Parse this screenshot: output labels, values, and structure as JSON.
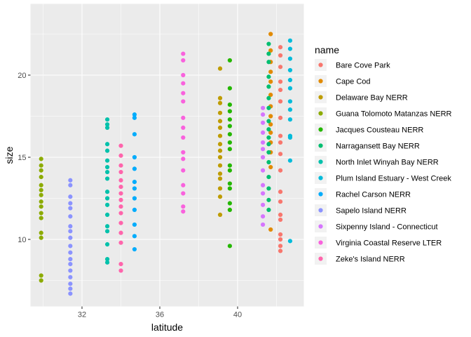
{
  "chart_data": {
    "type": "scatter",
    "title": "",
    "xlabel": "latitude",
    "ylabel": "size",
    "xlim": [
      29.6,
      43.0
    ],
    "ylim": [
      6.0,
      24.0
    ],
    "x_ticks": [
      32,
      36,
      40
    ],
    "y_ticks": [
      10,
      15,
      20
    ],
    "grid": true,
    "legend": {
      "title": "name",
      "position": "right"
    },
    "series": [
      {
        "name": "Bare Cove Park",
        "color": "#F8766D",
        "latitude": 42.2,
        "sizes": [
          9.3,
          9.6,
          10.0,
          10.3,
          11.2,
          11.5,
          12.3,
          12.9,
          14.2,
          15.2,
          15.9,
          16.3,
          17.4,
          18.4,
          19.1,
          19.6,
          20.5,
          21.2,
          21.7
        ]
      },
      {
        "name": "Cape Cod",
        "color": "#E18A00",
        "latitude": 41.7,
        "sizes": [
          10.6,
          14.4,
          15.3,
          15.9,
          16.5,
          17.0,
          17.5,
          18.1,
          18.8,
          19.6,
          20.2,
          20.8,
          21.5,
          22.5
        ]
      },
      {
        "name": "Delaware Bay NERR",
        "color": "#BE9C00",
        "latitude": 39.1,
        "sizes": [
          11.5,
          12.6,
          13.1,
          13.7,
          14.0,
          14.5,
          15.0,
          15.4,
          15.8,
          16.3,
          16.8,
          17.2,
          17.7,
          18.3,
          18.6,
          20.4
        ]
      },
      {
        "name": "Guana Tolomoto Matanzas NERR",
        "color": "#8CAB00",
        "latitude": 29.9,
        "sizes": [
          7.5,
          7.8,
          10.1,
          10.4,
          11.3,
          11.6,
          12.0,
          12.3,
          12.7,
          13.0,
          13.3,
          13.8,
          14.2,
          14.5,
          14.9
        ]
      },
      {
        "name": "Jacques Cousteau NERR",
        "color": "#24B700",
        "latitude": 39.6,
        "sizes": [
          9.6,
          11.8,
          12.2,
          13.1,
          13.4,
          14.2,
          14.5,
          15.5,
          15.9,
          16.4,
          16.9,
          17.3,
          17.8,
          18.2,
          19.2,
          20.9
        ]
      },
      {
        "name": "Narragansett Bay NERR",
        "color": "#00BE70",
        "latitude": 41.6,
        "sizes": [
          11.8,
          12.4,
          13.1,
          13.8,
          14.7,
          15.3,
          15.8,
          16.2,
          16.7,
          17.2,
          18.0,
          18.6,
          19.3,
          19.9,
          20.8,
          21.3,
          21.9
        ]
      },
      {
        "name": "North Inlet Winyah Bay NERR",
        "color": "#00C1AB",
        "latitude": 33.3,
        "sizes": [
          8.6,
          8.8,
          9.7,
          10.5,
          10.8,
          11.5,
          12.1,
          12.5,
          12.9,
          13.7,
          14.1,
          14.4,
          14.8,
          15.4,
          15.8,
          16.8,
          17.0,
          17.3
        ]
      },
      {
        "name": "Plum Island Estuary - West Creek",
        "color": "#00BBDA",
        "latitude": 42.7,
        "sizes": [
          9.9,
          14.8,
          16.2,
          16.3,
          17.3,
          17.9,
          18.4,
          19.2,
          19.7,
          20.3,
          21.0,
          21.6,
          22.1
        ]
      },
      {
        "name": "Rachel Carson NERR",
        "color": "#00ACFC",
        "latitude": 34.7,
        "sizes": [
          9.4,
          10.2,
          10.9,
          11.8,
          12.5,
          13.1,
          13.5,
          14.3,
          15.0,
          16.4,
          17.4,
          17.6
        ]
      },
      {
        "name": "Sapelo Island NERR",
        "color": "#8B93FF",
        "latitude": 31.4,
        "sizes": [
          6.7,
          7.0,
          7.3,
          7.7,
          8.1,
          8.5,
          8.8,
          9.2,
          9.6,
          10.1,
          10.5,
          10.8,
          11.4,
          11.9,
          12.2,
          12.6,
          13.3,
          13.6
        ]
      },
      {
        "name": "Sixpenny Island - Connecticut",
        "color": "#D575FE",
        "latitude": 41.3,
        "sizes": [
          10.9,
          11.4,
          12.1,
          12.8,
          13.3,
          14.2,
          15.0,
          15.5,
          15.9,
          16.5,
          17.1,
          17.6,
          18.0
        ]
      },
      {
        "name": "Virginia Coastal Reserve LTER",
        "color": "#F962DD",
        "latitude": 37.2,
        "sizes": [
          11.7,
          12.0,
          12.8,
          13.3,
          14.2,
          14.9,
          15.3,
          16.2,
          16.8,
          17.4,
          18.4,
          18.9,
          19.5,
          20.0,
          20.9,
          21.3
        ]
      },
      {
        "name": "Zeke's Island NERR",
        "color": "#FF65AC",
        "latitude": 34.0,
        "sizes": [
          8.1,
          8.5,
          9.8,
          10.4,
          11.0,
          11.6,
          12.0,
          12.4,
          12.8,
          13.2,
          13.6,
          14.1,
          14.5,
          15.1,
          15.7
        ]
      }
    ]
  }
}
